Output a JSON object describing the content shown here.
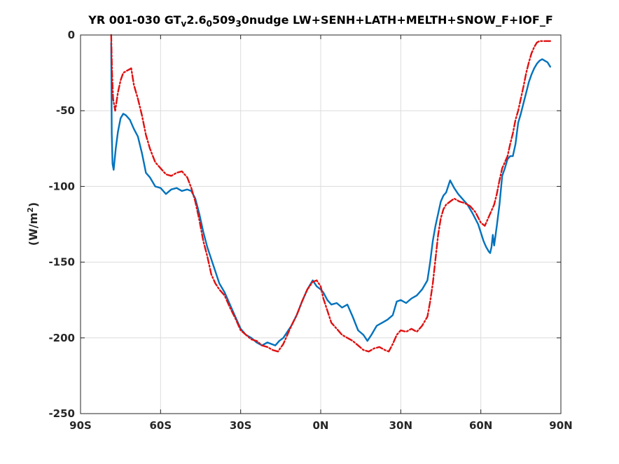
{
  "chart_data": {
    "type": "line",
    "title": {
      "prefix": "YR 001-030 GT",
      "sub1": "v",
      "mid1": "2.6",
      "sub2": "0",
      "mid2": "509",
      "sub3": "3",
      "suffix": "0nudge LW+SENH+LATH+MELTH+SNOW_F+IOF_F"
    },
    "ylabel": {
      "prefix": "(W/m",
      "sup": "2",
      "suffix": ")"
    },
    "xlim": [
      -90,
      90
    ],
    "ylim": [
      -250,
      0
    ],
    "xticks": [
      -90,
      -60,
      -30,
      0,
      30,
      60,
      90
    ],
    "xtick_labels": [
      "90S",
      "60S",
      "30S",
      "0N",
      "30N",
      "60N",
      "90N"
    ],
    "yticks": [
      0,
      -50,
      -100,
      -150,
      -200,
      -250
    ],
    "ytick_labels": [
      "0",
      "-50",
      "-100",
      "-150",
      "-200",
      "-250"
    ],
    "grid": true,
    "series": [
      {
        "color": "#0072bd",
        "style": "solid",
        "x": [
          -78.5,
          -78.3,
          -78.0,
          -77.6,
          -76.8,
          -76.0,
          -75.0,
          -74.0,
          -73.0,
          -71.5,
          -70.0,
          -68.5,
          -67.0,
          -65.5,
          -64.0,
          -62.0,
          -60.0,
          -58.0,
          -56.0,
          -54.0,
          -52.0,
          -50.0,
          -48.5,
          -47.0,
          -45.5,
          -44.0,
          -42.5,
          -41.0,
          -39.5,
          -38.0,
          -36.0,
          -34.0,
          -32.0,
          -30.0,
          -28.0,
          -26.0,
          -24.0,
          -22.0,
          -20.0,
          -18.5,
          -17.0,
          -15.5,
          -14.0,
          -12.5,
          -11.0,
          -9.0,
          -7.0,
          -5.0,
          -3.0,
          -1.5,
          0.0,
          1.0,
          2.5,
          4.0,
          6.0,
          8.0,
          10.0,
          12.0,
          14.0,
          16.0,
          17.5,
          19.0,
          21.0,
          23.0,
          25.0,
          27.0,
          28.5,
          30.0,
          32.0,
          34.0,
          36.0,
          38.0,
          40.0,
          41.0,
          42.0,
          43.0,
          44.0,
          45.0,
          46.0,
          47.0,
          48.5,
          50.0,
          51.5,
          53.0,
          55.0,
          57.0,
          59.0,
          61.0,
          62.0,
          63.0,
          63.5,
          64.0,
          64.5,
          65.0,
          66.0,
          67.0,
          68.0,
          69.0,
          70.0,
          71.0,
          72.0,
          73.0,
          74.0,
          75.0,
          76.0,
          77.0,
          78.0,
          79.0,
          80.0,
          81.0,
          82.0,
          83.0,
          84.0,
          85.0,
          86.0
        ],
        "y": [
          -5,
          -65,
          -85,
          -89,
          -75,
          -64,
          -55,
          -52,
          -53,
          -56,
          -62,
          -67,
          -78,
          -91,
          -94,
          -100,
          -101,
          -105,
          -102,
          -101,
          -103,
          -102,
          -103,
          -108,
          -118,
          -130,
          -140,
          -148,
          -156,
          -164,
          -170,
          -178,
          -186,
          -194,
          -198,
          -200,
          -203,
          -205,
          -203,
          -204,
          -205,
          -202,
          -200,
          -196,
          -192,
          -185,
          -176,
          -168,
          -162,
          -166,
          -168,
          -170,
          -175,
          -178,
          -177,
          -180,
          -178,
          -186,
          -195,
          -198,
          -202,
          -198,
          -192,
          -190,
          -188,
          -185,
          -176,
          -175,
          -177,
          -174,
          -172,
          -168,
          -162,
          -150,
          -136,
          -126,
          -118,
          -110,
          -106,
          -104,
          -96,
          -101,
          -105,
          -108,
          -112,
          -118,
          -125,
          -136,
          -140,
          -143,
          -144,
          -140,
          -132,
          -139,
          -126,
          -112,
          -93,
          -88,
          -82,
          -80,
          -80,
          -72,
          -58,
          -52,
          -45,
          -38,
          -31,
          -26,
          -22,
          -19,
          -17,
          -16,
          -17,
          -18,
          -21
        ]
      },
      {
        "color": "#e01010",
        "style": "dashdot",
        "x": [
          -78.5,
          -78.2,
          -77.8,
          -77.0,
          -76.0,
          -75.0,
          -74.0,
          -73.0,
          -72.0,
          -71.0,
          -70.0,
          -68.5,
          -67.0,
          -65.5,
          -64.0,
          -62.0,
          -60.0,
          -58.0,
          -56.0,
          -54.0,
          -52.0,
          -50.0,
          -48.5,
          -47.0,
          -45.5,
          -44.0,
          -42.5,
          -41.0,
          -39.5,
          -38.0,
          -36.0,
          -34.0,
          -32.0,
          -30.0,
          -28.0,
          -26.0,
          -24.0,
          -22.0,
          -20.0,
          -18.0,
          -16.0,
          -14.0,
          -12.5,
          -11.0,
          -9.0,
          -7.0,
          -5.0,
          -3.0,
          -1.5,
          0.0,
          1.0,
          2.5,
          4.0,
          6.0,
          8.0,
          10.0,
          12.0,
          14.0,
          16.0,
          18.0,
          20.0,
          22.0,
          24.0,
          25.5,
          27.0,
          28.5,
          30.0,
          32.0,
          34.0,
          36.0,
          38.0,
          40.0,
          41.0,
          42.0,
          43.0,
          44.0,
          45.0,
          46.0,
          47.0,
          48.5,
          50.0,
          52.0,
          54.0,
          56.0,
          58.0,
          60.0,
          61.5,
          63.0,
          64.0,
          65.0,
          66.0,
          67.0,
          68.0,
          69.0,
          70.0,
          71.0,
          72.0,
          73.0,
          74.0,
          75.0,
          76.0,
          77.0,
          78.0,
          79.0,
          80.0,
          81.0,
          82.0,
          83.0,
          84.0,
          85.0,
          86.0
        ],
        "y": [
          0,
          -25,
          -42,
          -50,
          -38,
          -30,
          -25,
          -24,
          -23,
          -22,
          -33,
          -42,
          -53,
          -66,
          -75,
          -84,
          -88,
          -92,
          -93,
          -91,
          -90,
          -94,
          -101,
          -110,
          -122,
          -136,
          -146,
          -158,
          -164,
          -168,
          -172,
          -180,
          -187,
          -195,
          -198,
          -201,
          -202,
          -205,
          -206,
          -208,
          -209,
          -204,
          -198,
          -192,
          -185,
          -176,
          -168,
          -163,
          -162,
          -166,
          -174,
          -182,
          -190,
          -194,
          -198,
          -200,
          -202,
          -205,
          -208,
          -209,
          -207,
          -206,
          -208,
          -209,
          -204,
          -198,
          -195,
          -196,
          -194,
          -196,
          -192,
          -186,
          -176,
          -164,
          -148,
          -132,
          -121,
          -115,
          -112,
          -110,
          -108,
          -110,
          -111,
          -113,
          -117,
          -124,
          -126,
          -120,
          -116,
          -112,
          -105,
          -96,
          -88,
          -84,
          -80,
          -72,
          -65,
          -56,
          -50,
          -42,
          -34,
          -25,
          -18,
          -12,
          -8,
          -5,
          -4,
          -4,
          -4,
          -4,
          -4
        ]
      }
    ]
  }
}
